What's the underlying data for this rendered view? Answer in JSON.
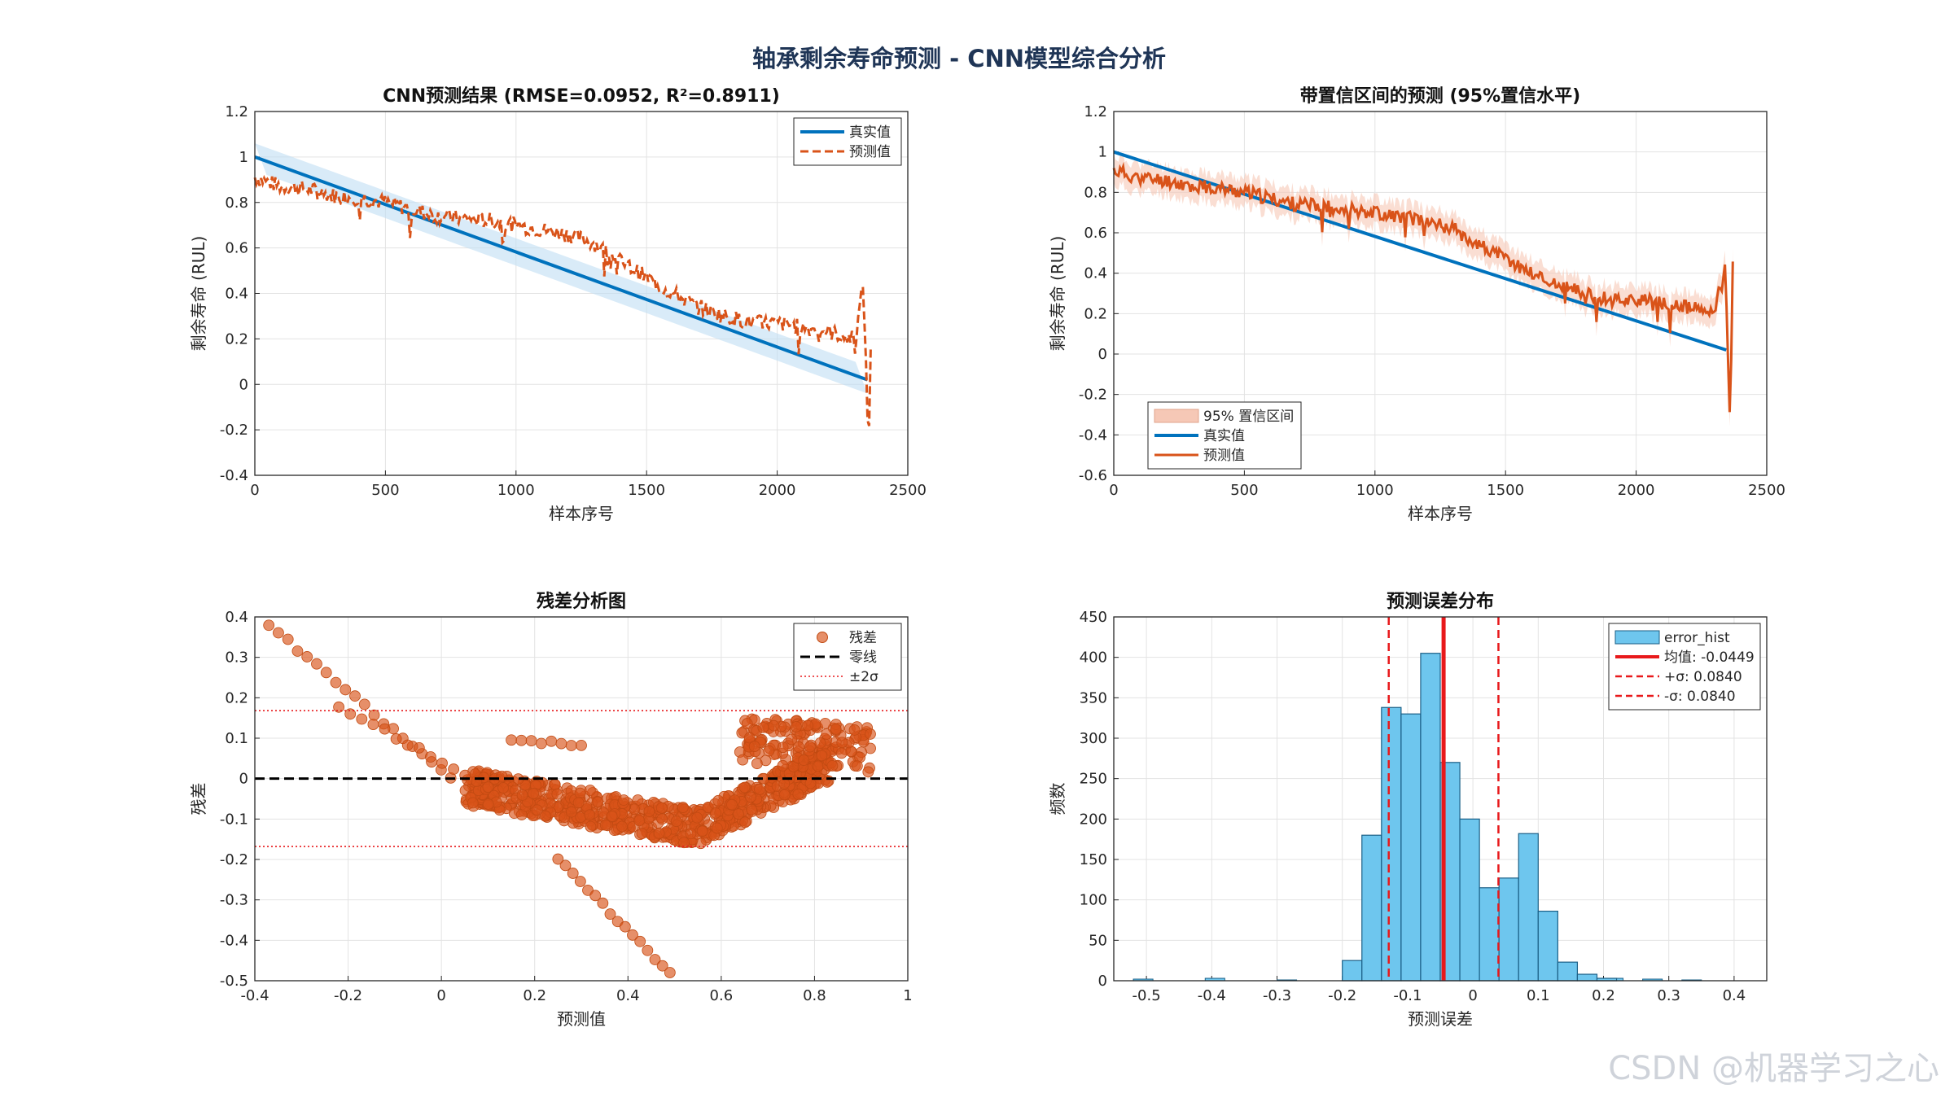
{
  "figure": {
    "title": "轴承剩余寿命预测 - CNN模型综合分析",
    "watermark": "CSDN @机器学习之心",
    "colors": {
      "true": "#0072BD",
      "pred": "#D95319",
      "ci": "#F6C8B6",
      "band": "#BFDDF3",
      "hist": "#6EC6EE",
      "red": "#E8191B"
    }
  },
  "chart_data": [
    {
      "id": "pred",
      "type": "line",
      "title": "CNN预测结果 (RMSE=0.0952, R²=0.8911)",
      "xlabel": "样本序号",
      "ylabel": "剩余寿命 (RUL)",
      "xlim": [
        0,
        2500
      ],
      "ylim": [
        -0.4,
        1.2
      ],
      "xticks": [
        0,
        500,
        1000,
        1500,
        2000,
        2500
      ],
      "yticks": [
        -0.4,
        -0.2,
        0,
        0.2,
        0.4,
        0.6,
        0.8,
        1,
        1.2
      ],
      "grid": true,
      "legend": {
        "position": "top-right",
        "entries": [
          "真实值",
          "预测值"
        ]
      },
      "series": [
        {
          "name": "真实值",
          "style": "solid",
          "x": [
            0,
            2345
          ],
          "y": [
            1.0,
            0.02
          ]
        },
        {
          "name": "预测值",
          "style": "dashed",
          "x": [
            0,
            100,
            200,
            300,
            400,
            500,
            600,
            700,
            800,
            900,
            1000,
            1100,
            1200,
            1300,
            1400,
            1500,
            1600,
            1700,
            1800,
            1900,
            2000,
            2100,
            2200,
            2300,
            2330,
            2350,
            2360
          ],
          "y": [
            0.91,
            0.87,
            0.86,
            0.83,
            0.82,
            0.8,
            0.77,
            0.74,
            0.73,
            0.72,
            0.7,
            0.68,
            0.66,
            0.62,
            0.54,
            0.47,
            0.4,
            0.34,
            0.3,
            0.27,
            0.27,
            0.25,
            0.23,
            0.2,
            0.45,
            -0.3,
            0.3
          ]
        }
      ]
    },
    {
      "id": "ci",
      "type": "line",
      "title": "带置信区间的预测 (95%置信水平)",
      "xlabel": "样本序号",
      "ylabel": "剩余寿命 (RUL)",
      "xlim": [
        0,
        2500
      ],
      "ylim": [
        -0.6,
        1.2
      ],
      "xticks": [
        0,
        500,
        1000,
        1500,
        2000,
        2500
      ],
      "yticks": [
        -0.6,
        -0.4,
        -0.2,
        0,
        0.2,
        0.4,
        0.6,
        0.8,
        1,
        1.2
      ],
      "grid": true,
      "legend": {
        "position": "bottom-left",
        "entries": [
          "95% 置信区间",
          "真实值",
          "预测值"
        ]
      },
      "series": [
        {
          "name": "真实值",
          "style": "solid",
          "x": [
            0,
            2345
          ],
          "y": [
            1.0,
            0.02
          ]
        },
        {
          "name": "预测值",
          "style": "solid",
          "x": [
            0,
            100,
            200,
            300,
            400,
            500,
            600,
            700,
            800,
            900,
            1000,
            1100,
            1200,
            1300,
            1400,
            1500,
            1600,
            1700,
            1800,
            1900,
            2000,
            2100,
            2200,
            2300,
            2340,
            2360,
            2370
          ],
          "y": [
            0.91,
            0.87,
            0.86,
            0.83,
            0.82,
            0.8,
            0.77,
            0.74,
            0.73,
            0.72,
            0.7,
            0.68,
            0.66,
            0.62,
            0.54,
            0.47,
            0.4,
            0.34,
            0.3,
            0.27,
            0.27,
            0.25,
            0.23,
            0.2,
            0.45,
            -0.35,
            0.45
          ]
        }
      ],
      "ci_halfwidth": 0.07
    },
    {
      "id": "resid",
      "type": "scatter",
      "title": "残差分析图",
      "xlabel": "预测值",
      "ylabel": "残差",
      "xlim": [
        -0.4,
        1
      ],
      "ylim": [
        -0.5,
        0.4
      ],
      "xticks": [
        -0.4,
        -0.2,
        0,
        0.2,
        0.4,
        0.6,
        0.8,
        1
      ],
      "yticks": [
        -0.5,
        -0.4,
        -0.3,
        -0.2,
        -0.1,
        0,
        0.1,
        0.2,
        0.3,
        0.4
      ],
      "grid": true,
      "legend": {
        "position": "top-right",
        "entries": [
          "残差",
          "零线",
          "±2σ"
        ]
      },
      "zero_line": 0,
      "sigma_lines": [
        0.168,
        -0.168
      ],
      "clusters": [
        {
          "x": [
            -0.37,
            0.02
          ],
          "y": [
            0.38,
            0.0
          ],
          "n": 20
        },
        {
          "x": [
            -0.22,
            0.1
          ],
          "y": [
            0.18,
            -0.02
          ],
          "n": 14
        },
        {
          "x": [
            0.25,
            0.49
          ],
          "y": [
            -0.2,
            -0.48
          ],
          "n": 16
        },
        {
          "x": [
            0.15,
            0.3
          ],
          "y": [
            0.1,
            0.08
          ],
          "n": 8
        }
      ]
    },
    {
      "id": "hist",
      "type": "bar",
      "title": "预测误差分布",
      "xlabel": "预测误差",
      "ylabel": "频数",
      "xlim": [
        -0.55,
        0.45
      ],
      "ylim": [
        0,
        450
      ],
      "xticks": [
        -0.5,
        -0.4,
        -0.3,
        -0.2,
        -0.1,
        0,
        0.1,
        0.2,
        0.3,
        0.4
      ],
      "yticks": [
        0,
        50,
        100,
        150,
        200,
        250,
        300,
        350,
        400,
        450
      ],
      "grid": true,
      "legend": {
        "position": "top-right",
        "entries": [
          "error_hist",
          "均值: -0.0449",
          "+σ: 0.0840",
          "-σ: 0.0840"
        ]
      },
      "bin_width": 0.03,
      "bin_left": -0.2,
      "counts": [
        25,
        180,
        338,
        330,
        405,
        270,
        200,
        115,
        127,
        182,
        86,
        23,
        8,
        3
      ],
      "mean": -0.0449,
      "plus_sigma": 0.0391,
      "minus_sigma": -0.1289
    }
  ]
}
